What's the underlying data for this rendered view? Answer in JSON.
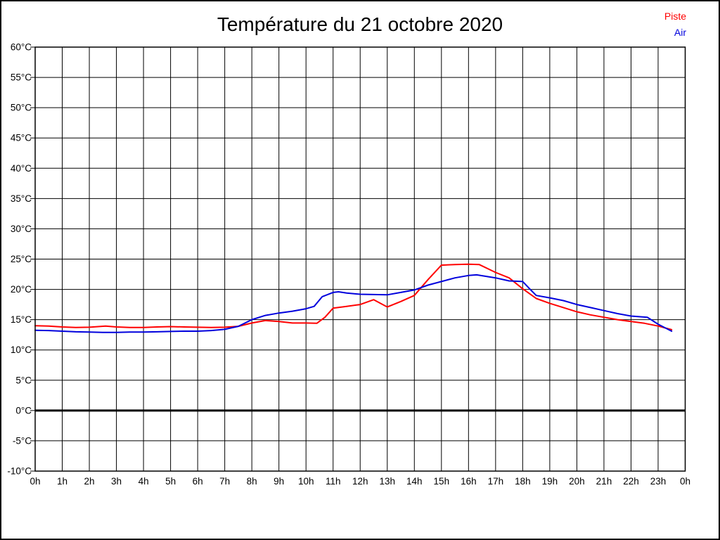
{
  "title": "Température du 21 octobre 2020",
  "chart_data": {
    "type": "line",
    "title": "Température du 21 octobre 2020",
    "xlabel": "",
    "ylabel": "",
    "xlim": [
      0,
      24
    ],
    "ylim": [
      -10,
      60
    ],
    "y_tick_step": 5,
    "y_tick_suffix": "°C",
    "y_tick_labels": [
      "60°C",
      "55°C",
      "50°C",
      "45°C",
      "40°C",
      "35°C",
      "30°C",
      "25°C",
      "20°C",
      "15°C",
      "10°C",
      "5°C",
      "0°C",
      "-5°C",
      "-10°C"
    ],
    "x_tick_labels": [
      "0h",
      "1h",
      "2h",
      "3h",
      "4h",
      "5h",
      "6h",
      "7h",
      "8h",
      "9h",
      "10h",
      "11h",
      "12h",
      "13h",
      "14h",
      "15h",
      "16h",
      "17h",
      "18h",
      "19h",
      "20h",
      "21h",
      "22h",
      "23h",
      "0h"
    ],
    "grid": true,
    "grid_color": "#000000",
    "zero_line": {
      "value": 0,
      "color": "#000000",
      "width": 3
    },
    "legend_position": "top-right",
    "series": [
      {
        "name": "Piste",
        "color": "#ff0000",
        "points": [
          [
            0,
            14.0
          ],
          [
            0.5,
            13.95
          ],
          [
            1,
            13.8
          ],
          [
            1.5,
            13.7
          ],
          [
            2,
            13.75
          ],
          [
            2.6,
            13.95
          ],
          [
            3,
            13.8
          ],
          [
            3.5,
            13.7
          ],
          [
            4,
            13.7
          ],
          [
            4.5,
            13.8
          ],
          [
            5,
            13.85
          ],
          [
            5.5,
            13.8
          ],
          [
            6,
            13.75
          ],
          [
            6.5,
            13.7
          ],
          [
            7,
            13.75
          ],
          [
            7.5,
            13.9
          ],
          [
            8,
            14.45
          ],
          [
            8.5,
            14.85
          ],
          [
            9,
            14.7
          ],
          [
            9.5,
            14.45
          ],
          [
            10,
            14.45
          ],
          [
            10.4,
            14.4
          ],
          [
            10.7,
            15.4
          ],
          [
            11,
            16.9
          ],
          [
            11.5,
            17.2
          ],
          [
            12,
            17.5
          ],
          [
            12.5,
            18.3
          ],
          [
            13,
            17.1
          ],
          [
            13.5,
            18.0
          ],
          [
            14,
            19.0
          ],
          [
            14.5,
            21.6
          ],
          [
            15,
            24.0
          ],
          [
            15.5,
            24.1
          ],
          [
            16,
            24.15
          ],
          [
            16.4,
            24.1
          ],
          [
            17,
            22.8
          ],
          [
            17.5,
            21.9
          ],
          [
            18,
            20.1
          ],
          [
            18.5,
            18.5
          ],
          [
            19,
            17.7
          ],
          [
            19.5,
            17.0
          ],
          [
            20,
            16.3
          ],
          [
            20.5,
            15.8
          ],
          [
            21,
            15.4
          ],
          [
            21.5,
            15.0
          ],
          [
            22,
            14.7
          ],
          [
            22.5,
            14.4
          ],
          [
            23,
            13.95
          ],
          [
            23.5,
            13.35
          ]
        ]
      },
      {
        "name": "Air",
        "color": "#0000dd",
        "points": [
          [
            0,
            13.25
          ],
          [
            0.5,
            13.2
          ],
          [
            1,
            13.1
          ],
          [
            1.5,
            13.0
          ],
          [
            2,
            12.95
          ],
          [
            2.5,
            12.9
          ],
          [
            3,
            12.9
          ],
          [
            3.5,
            12.95
          ],
          [
            4,
            12.95
          ],
          [
            4.5,
            13.0
          ],
          [
            5,
            13.05
          ],
          [
            5.5,
            13.1
          ],
          [
            6,
            13.1
          ],
          [
            6.5,
            13.2
          ],
          [
            7,
            13.4
          ],
          [
            7.5,
            13.9
          ],
          [
            8,
            15.0
          ],
          [
            8.5,
            15.7
          ],
          [
            9,
            16.1
          ],
          [
            9.5,
            16.4
          ],
          [
            10,
            16.8
          ],
          [
            10.3,
            17.2
          ],
          [
            10.6,
            18.8
          ],
          [
            11,
            19.5
          ],
          [
            11.2,
            19.6
          ],
          [
            11.5,
            19.4
          ],
          [
            12,
            19.2
          ],
          [
            12.5,
            19.15
          ],
          [
            13,
            19.1
          ],
          [
            13.5,
            19.5
          ],
          [
            14,
            19.9
          ],
          [
            14.5,
            20.7
          ],
          [
            15,
            21.3
          ],
          [
            15.5,
            21.9
          ],
          [
            16,
            22.3
          ],
          [
            16.3,
            22.4
          ],
          [
            17,
            21.9
          ],
          [
            17.5,
            21.4
          ],
          [
            18,
            21.3
          ],
          [
            18.3,
            19.9
          ],
          [
            18.5,
            19.0
          ],
          [
            19,
            18.6
          ],
          [
            19.5,
            18.15
          ],
          [
            20,
            17.5
          ],
          [
            20.5,
            17.0
          ],
          [
            21,
            16.5
          ],
          [
            21.5,
            16.0
          ],
          [
            22,
            15.6
          ],
          [
            22.6,
            15.4
          ],
          [
            23,
            14.25
          ],
          [
            23.5,
            13.1
          ]
        ]
      }
    ]
  }
}
